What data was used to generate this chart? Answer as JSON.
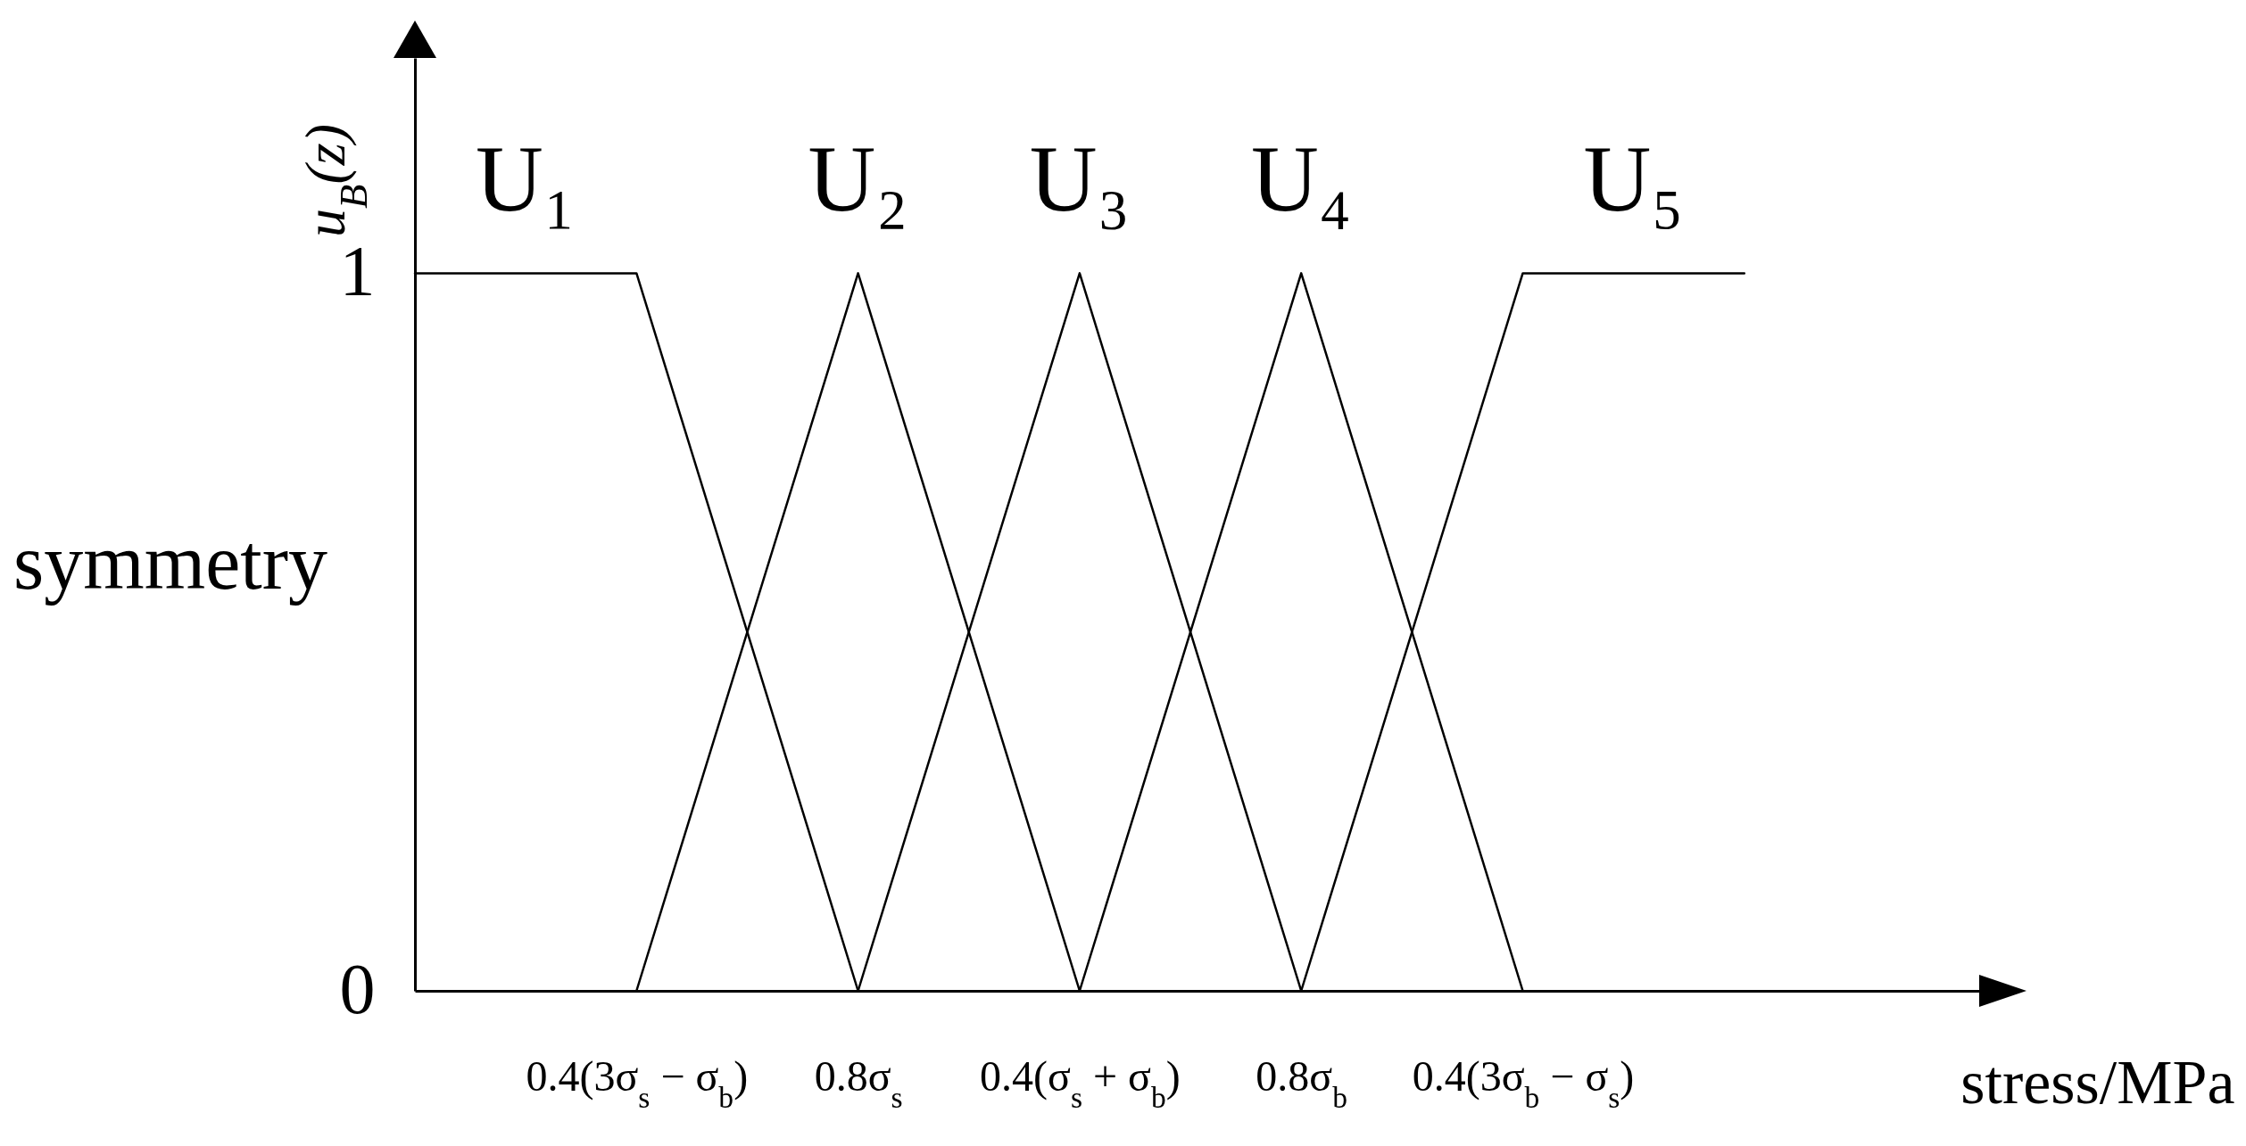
{
  "chart_data": {
    "type": "line",
    "xlabel": "stress/MPa",
    "ylabel": "u$_{B}$(z)",
    "annotations": [
      "symmetry"
    ],
    "categories": [
      null,
      "0.4(3σ$_{s}$ − σ$_{b}$)",
      "0.8σ$_{s}$",
      "0.4(σ$_{s}$ + σ$_{b}$)",
      "0.8σ$_{b}$",
      "0.4(3σ$_{b}$ − σ$_{s}$)",
      null
    ],
    "series": [
      {
        "name": "U₁",
        "color": "#000000",
        "values": [
          1,
          1,
          0,
          null,
          null,
          null,
          null
        ]
      },
      {
        "name": "U₂",
        "color": "#000000",
        "values": [
          null,
          0,
          1,
          0,
          null,
          null,
          null
        ]
      },
      {
        "name": "U₃",
        "color": "#000000",
        "values": [
          null,
          null,
          0,
          1,
          0,
          null,
          null
        ]
      },
      {
        "name": "U₄",
        "color": "#000000",
        "values": [
          null,
          null,
          null,
          0,
          1,
          0,
          null
        ]
      },
      {
        "name": "U₅",
        "color": "#000000",
        "values": [
          null,
          null,
          null,
          null,
          0,
          1,
          1
        ]
      }
    ],
    "ylim": [
      0,
      1.3
    ],
    "yticks": [
      0,
      1
    ]
  }
}
